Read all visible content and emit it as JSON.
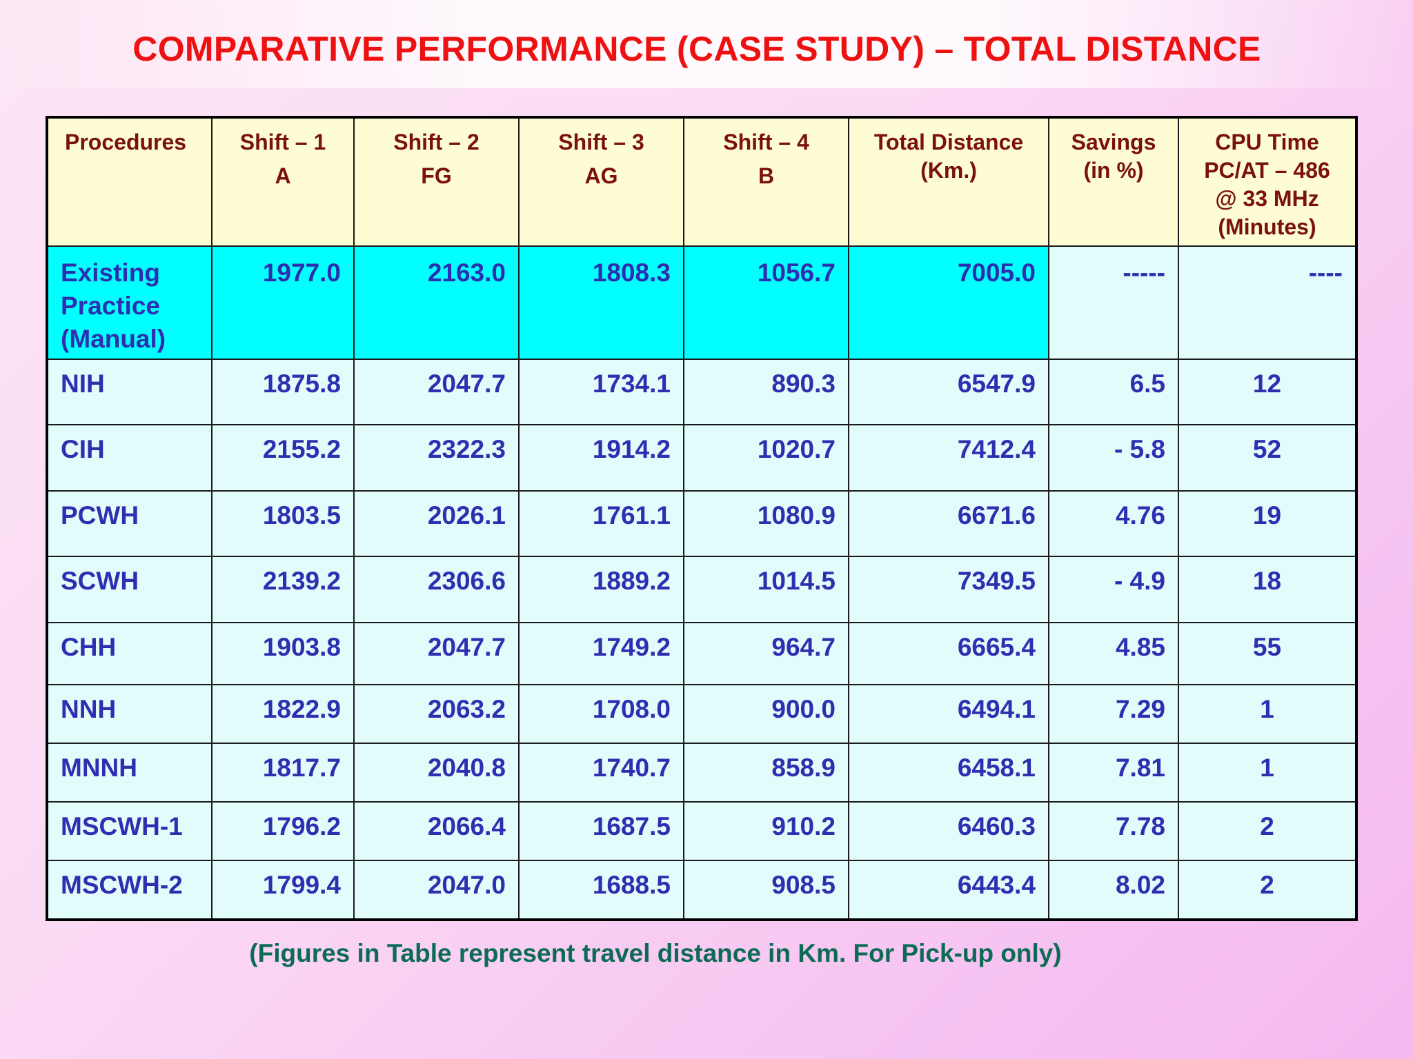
{
  "title": "COMPARATIVE PERFORMANCE (CASE STUDY) – TOTAL DISTANCE",
  "columns": [
    {
      "line1": "Procedures",
      "line2": ""
    },
    {
      "line1": "Shift – 1",
      "line2": "A"
    },
    {
      "line1": "Shift – 2",
      "line2": "FG"
    },
    {
      "line1": "Shift – 3",
      "line2": "AG"
    },
    {
      "line1": "Shift – 4",
      "line2": "B"
    },
    {
      "line1": "Total Distance",
      "line2": "(Km.)"
    },
    {
      "line1": "Savings",
      "line2": "(in %)"
    },
    {
      "line1": "CPU Time",
      "line2": "PC/AT – 486",
      "line3": "@ 33 MHz",
      "line4": "(Minutes)"
    }
  ],
  "rows": [
    {
      "procedure_line1": "Existing",
      "procedure_line2": "Practice",
      "procedure_line3": "(Manual)",
      "shift1": "1977.0",
      "shift2": "2163.0",
      "shift3": "1808.3",
      "shift4": "1056.7",
      "total": "7005.0",
      "savings": "-----",
      "cpu": "----"
    },
    {
      "procedure": "NIH",
      "shift1": "1875.8",
      "shift2": "2047.7",
      "shift3": "1734.1",
      "shift4": "890.3",
      "total": "6547.9",
      "savings": "6.5",
      "cpu": "12"
    },
    {
      "procedure": "CIH",
      "shift1": "2155.2",
      "shift2": "2322.3",
      "shift3": "1914.2",
      "shift4": "1020.7",
      "total": "7412.4",
      "savings": "- 5.8",
      "cpu": "52"
    },
    {
      "procedure": "PCWH",
      "shift1": "1803.5",
      "shift2": "2026.1",
      "shift3": "1761.1",
      "shift4": "1080.9",
      "total": "6671.6",
      "savings": "4.76",
      "cpu": "19"
    },
    {
      "procedure": "SCWH",
      "shift1": "2139.2",
      "shift2": "2306.6",
      "shift3": "1889.2",
      "shift4": "1014.5",
      "total": "7349.5",
      "savings": "- 4.9",
      "cpu": "18"
    },
    {
      "procedure": "CHH",
      "shift1": "1903.8",
      "shift2": "2047.7",
      "shift3": "1749.2",
      "shift4": "964.7",
      "total": "6665.4",
      "savings": "4.85",
      "cpu": "55"
    },
    {
      "procedure": "NNH",
      "shift1": "1822.9",
      "shift2": "2063.2",
      "shift3": "1708.0",
      "shift4": "900.0",
      "total": "6494.1",
      "savings": "7.29",
      "cpu": "1"
    },
    {
      "procedure": "MNNH",
      "shift1": "1817.7",
      "shift2": "2040.8",
      "shift3": "1740.7",
      "shift4": "858.9",
      "total": "6458.1",
      "savings": "7.81",
      "cpu": "1"
    },
    {
      "procedure": "MSCWH-1",
      "shift1": "1796.2",
      "shift2": "2066.4",
      "shift3": "1687.5",
      "shift4": "910.2",
      "total": "6460.3",
      "savings": "7.78",
      "cpu": "2"
    },
    {
      "procedure": "MSCWH-2",
      "shift1": "1799.4",
      "shift2": "2047.0",
      "shift3": "1688.5",
      "shift4": "908.5",
      "total": "6443.4",
      "savings": "8.02",
      "cpu": "2"
    }
  ],
  "footnote": "(Figures in Table represent travel distance in Km. For Pick-up only)",
  "colors": {
    "title": "#ee1111",
    "header_bg": "#fdfcd2",
    "header_text": "#7a1010",
    "cell_bg": "#e2fbfb",
    "highlight_bg": "#00ffff",
    "cell_text": "#2d2fb0",
    "footnote": "#0b6b55"
  }
}
